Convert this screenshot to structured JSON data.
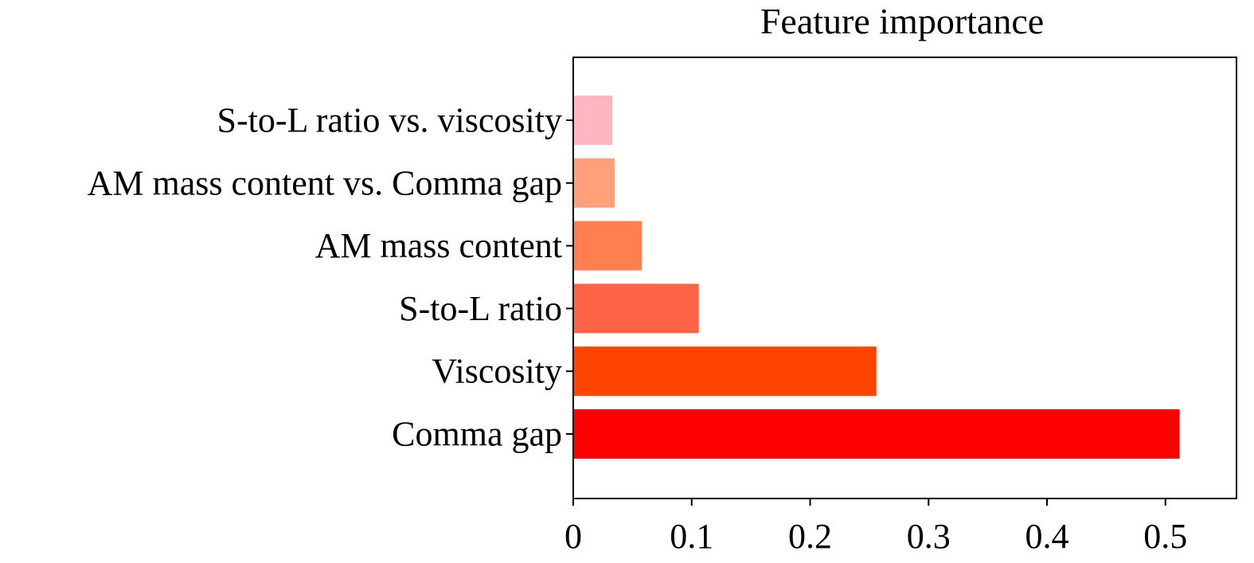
{
  "chart_data": {
    "type": "bar",
    "orientation": "horizontal",
    "title": "Feature importance",
    "xlabel": "",
    "ylabel": "",
    "categories": [
      "S-to-L ratio vs. viscosity",
      "AM mass content vs. Comma gap",
      "AM mass content",
      "S-to-L ratio",
      "Viscosity",
      "Comma gap"
    ],
    "values": [
      0.033,
      0.035,
      0.058,
      0.106,
      0.256,
      0.512
    ],
    "colors": [
      "#FFB6C1",
      "#FFA07A",
      "#FF7F50",
      "#FF6347",
      "#FF4500",
      "#FF0000"
    ],
    "xlim": [
      0,
      0.56
    ],
    "xticks": [
      0,
      0.1,
      0.2,
      0.3,
      0.4,
      0.5
    ],
    "xtick_labels": [
      "0",
      "0.1",
      "0.2",
      "0.3",
      "0.4",
      "0.5"
    ],
    "grid": false,
    "legend": "none"
  }
}
